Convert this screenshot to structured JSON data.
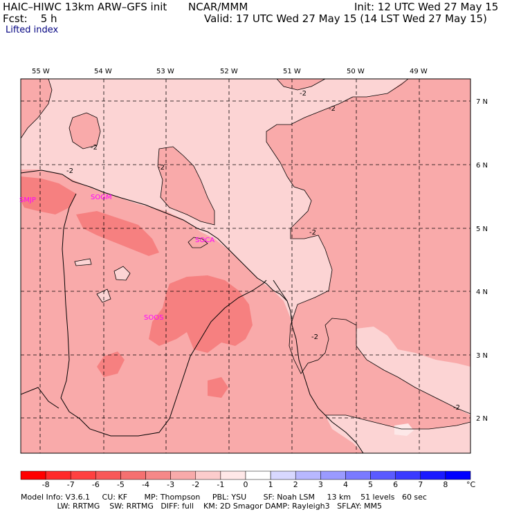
{
  "header": {
    "model": "HAIC–HIWC 13km ARW–GFS init",
    "center": "NCAR/MMM",
    "init": "Init: 12 UTC Wed 27 May 15",
    "fcst": "Fcst:    5 h",
    "valid": "Valid: 17 UTC Wed 27 May 15 (14 LST Wed 27 May 15)",
    "field": "Lifted index"
  },
  "map": {
    "lon_labels": [
      "55 W",
      "54 W",
      "53 W",
      "52 W",
      "51 W",
      "50 W",
      "49 W"
    ],
    "lat_labels": [
      "7 N",
      "6 N",
      "5 N",
      "4 N",
      "3 N",
      "2 N"
    ],
    "sites": [
      "SMJP",
      "SOGM",
      "SOCA",
      "SOOS"
    ],
    "contour_label": "-2",
    "colors": {
      "background": "#fcd4d4",
      "medium": "#f9aaaa",
      "dark": "#f68080",
      "light": "#fde8e8"
    }
  },
  "colorbar": {
    "values": [
      "-8",
      "-7",
      "-6",
      "-5",
      "-4",
      "-3",
      "-2",
      "-1",
      "0",
      "1",
      "2",
      "3",
      "4",
      "5",
      "6",
      "7",
      "8"
    ],
    "unit": "°C",
    "colors": [
      "#ff0000",
      "#ff2a2a",
      "#ff4040",
      "#f85858",
      "#f57070",
      "#f58888",
      "#f8aaaa",
      "#fccccc",
      "#ffe8e8",
      "#ffffff",
      "#d8d8ff",
      "#b8b8ff",
      "#9a9aff",
      "#7a7aff",
      "#5a5aff",
      "#3a3aff",
      "#1a1aff",
      "#0000ff"
    ]
  },
  "footer": {
    "line1": "Model Info: V3.6.1     CU: KF       MP: Thompson     PBL: YSU       SF: Noah LSM     13 km    51 levels   60 sec",
    "line2": "               LW: RRTMG    SW: RRTMG   DIFF: full    KM: 2D Smagor DAMP: Rayleigh3   SFLAY: MM5"
  }
}
